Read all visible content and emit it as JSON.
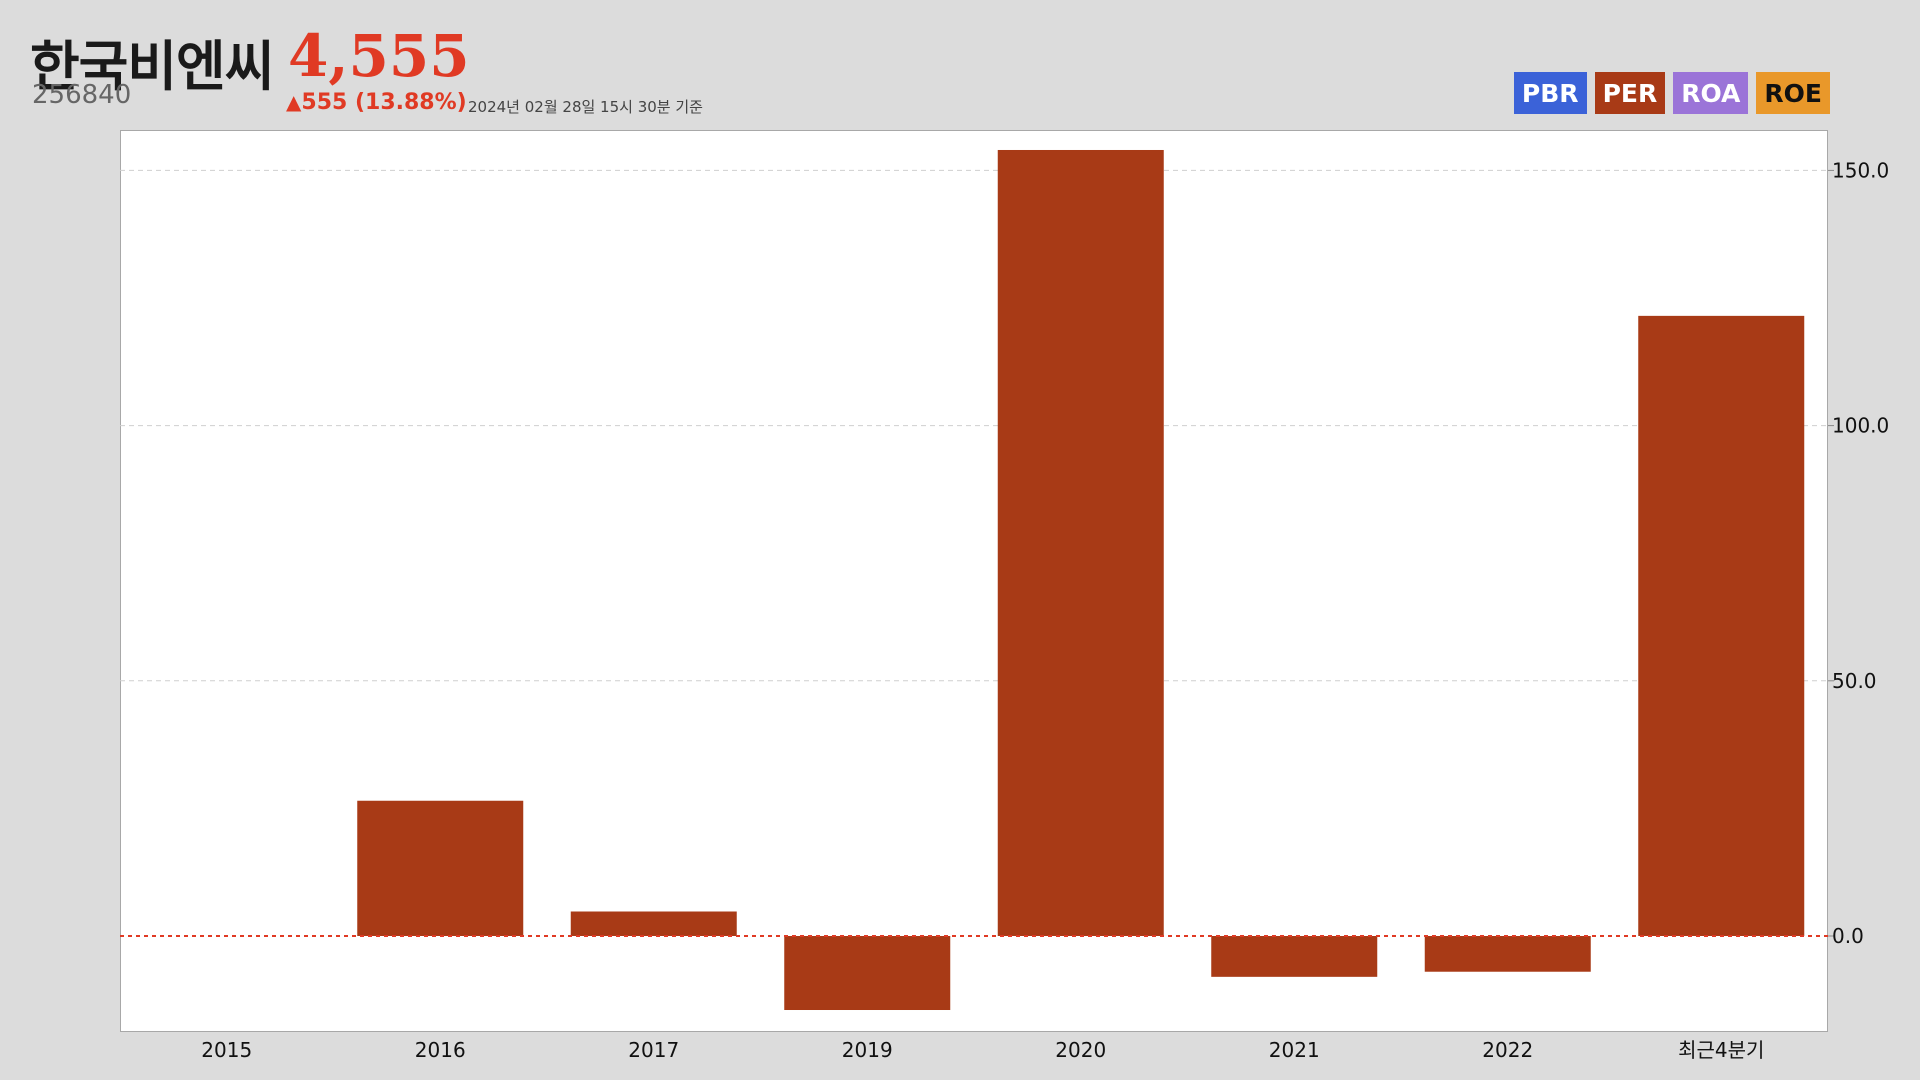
{
  "header": {
    "stock_name": "한국비엔씨",
    "stock_code": "256840",
    "price": "4,555",
    "change_arrow": "▲",
    "change": "555 (13.88%)",
    "timestamp": "2024년 02월 28일 15시 30분 기준"
  },
  "metric_buttons": [
    {
      "label": "PBR",
      "color": "#3b62d8"
    },
    {
      "label": "PER",
      "color": "#a83a16"
    },
    {
      "label": "ROA",
      "color": "#9b74d8"
    },
    {
      "label": "ROE",
      "color": "#e9982a"
    }
  ],
  "chart_data": {
    "type": "bar",
    "categories": [
      "2015",
      "2016",
      "2017",
      "2019",
      "2020",
      "2021",
      "2022",
      "최근4분기"
    ],
    "values": [
      null,
      26.5,
      4.8,
      -14.5,
      154.0,
      -8.0,
      -7.0,
      121.5
    ],
    "bar_color": "#a83a16",
    "zero_line_color": "#e03a24",
    "ylim": [
      -18.5,
      163
    ],
    "y_ticks": [
      "150.0",
      "100.0",
      "50.0",
      "0.0"
    ],
    "y_axis_position": "right",
    "grid": true
  }
}
